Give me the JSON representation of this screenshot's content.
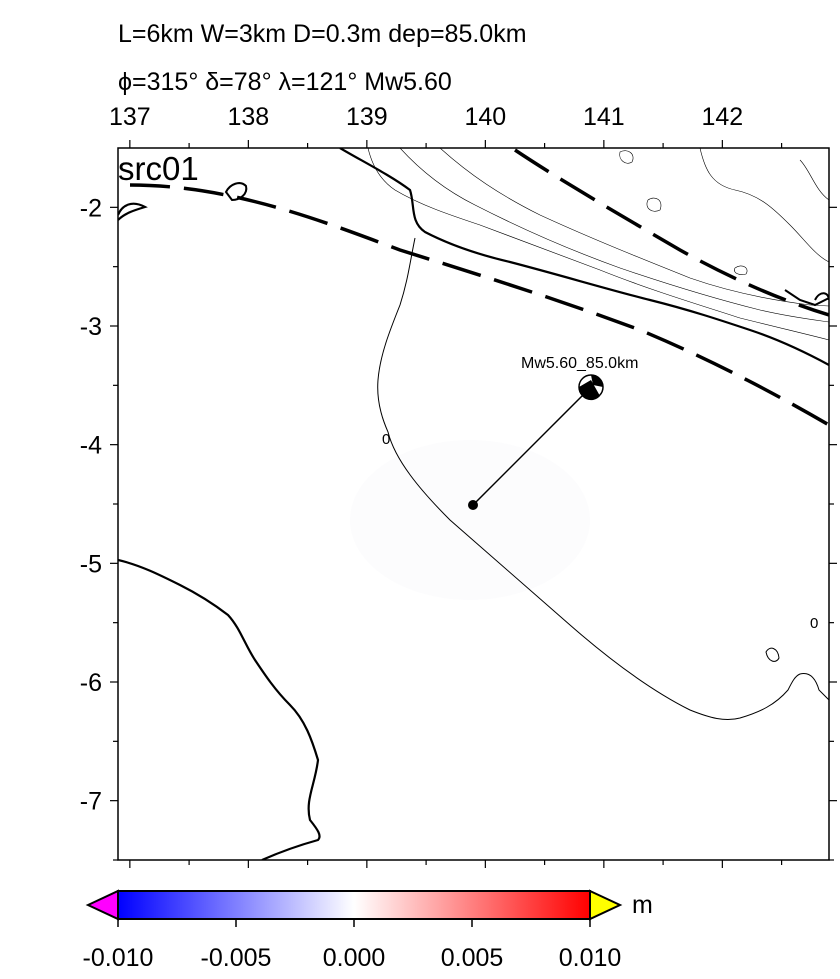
{
  "header": {
    "line1": "L=6km W=3km D=0.3m dep=85.0km",
    "line2": "ϕ=315° δ=78° λ=121° Mw5.60"
  },
  "map": {
    "panel_label": "src01",
    "lon_ticks": [
      137,
      138,
      139,
      140,
      141,
      142
    ],
    "lat_ticks": [
      -2,
      -3,
      -4,
      -5,
      -6,
      -7
    ],
    "lon_range": [
      136.9,
      142.9
    ],
    "lat_range": [
      -1.5,
      -7.5
    ],
    "contour_labels": [
      {
        "text": "0",
        "lon": 139.2,
        "lat": -3.95
      },
      {
        "text": "0",
        "lon": 142.8,
        "lat": -5.45
      }
    ],
    "event": {
      "label": "Mw5.60_85.0km",
      "beachball_lon": 140.9,
      "beachball_lat": -3.5,
      "epicenter_lon": 139.9,
      "epicenter_lat": -4.5
    }
  },
  "colorbar": {
    "unit": "m",
    "ticks": [
      "-0.010",
      "-0.005",
      "0.000",
      "0.005",
      "0.010"
    ],
    "under_color": "#ff00ff",
    "over_color": "#ffff00",
    "colors": [
      "#0000ff",
      "#ffffff",
      "#ff0000"
    ]
  }
}
